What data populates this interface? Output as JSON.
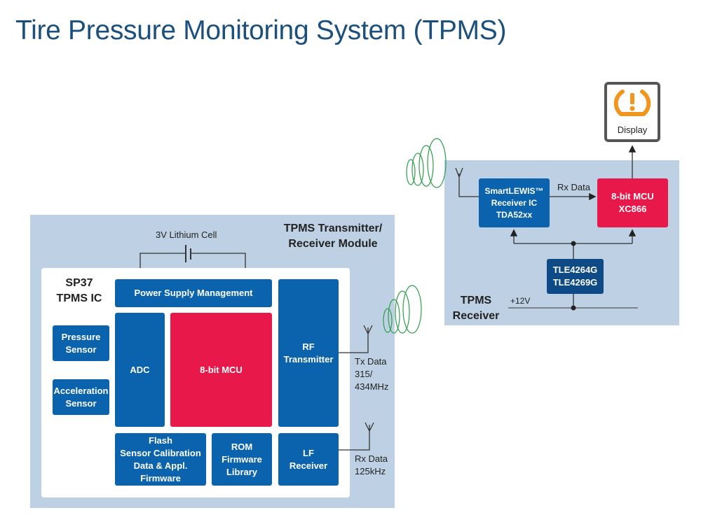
{
  "title": "Tire Pressure Monitoring System (TPMS)",
  "transmitter": {
    "module_label_line1": "TPMS Transmitter/",
    "module_label_line2": "Receiver Module",
    "battery_label": "3V Lithium Cell",
    "ic_label_line1": "SP37",
    "ic_label_line2": "TPMS IC",
    "blocks": {
      "power_supply": "Power Supply Management",
      "adc": "ADC",
      "mcu": "8-bit MCU",
      "rf_line1": "RF",
      "rf_line2": "Transmitter",
      "flash_line1": "Flash",
      "flash_line2": "Sensor Calibration",
      "flash_line3": "Data & Appl.",
      "flash_line4": "Firmware",
      "rom_line1": "ROM",
      "rom_line2": "Firmware",
      "rom_line3": "Library",
      "lf_line1": "LF",
      "lf_line2": "Receiver",
      "pressure_line1": "Pressure",
      "pressure_line2": "Sensor",
      "accel_line1": "Acceleration",
      "accel_line2": "Sensor"
    },
    "tx_line1": "Tx Data",
    "tx_line2": "315/",
    "tx_line3": "434MHz",
    "rx_line1": "Rx Data",
    "rx_line2": "125kHz"
  },
  "receiver": {
    "label_line1": "TPMS",
    "label_line2": "Receiver",
    "smartlewis_line1": "SmartLEWIS™",
    "smartlewis_line2": "Receiver IC",
    "smartlewis_line3": "TDA52xx",
    "mcu_line1": "8-bit MCU",
    "mcu_line2": "XC866",
    "regulator_line1": "TLE4264G",
    "regulator_line2": "TLE4269G",
    "rx_data": "Rx Data",
    "supply": "+12V",
    "display": "Display"
  },
  "colors": {
    "accent_blue": "#0b63ad",
    "mcu_red": "#e8194a",
    "panel": "#bed1e4",
    "warning_orange": "#f0961e",
    "wave_green": "#2e9e4a"
  }
}
